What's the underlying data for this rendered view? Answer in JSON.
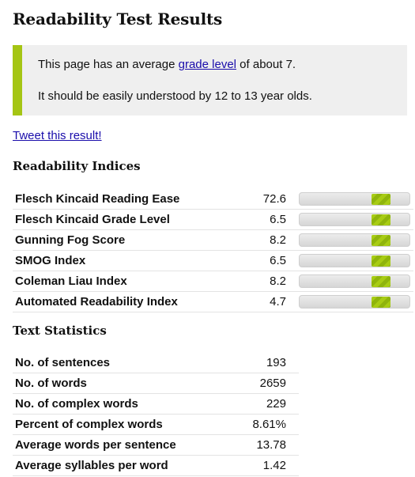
{
  "title": "Readability Test Results",
  "summary": {
    "line1_before": "This page has an average ",
    "line1_link": "grade level",
    "line1_after": " of about 7.",
    "line2": "It should be easily understood by 12 to 13 year olds."
  },
  "tweet_link": "Tweet this result!",
  "indices": {
    "heading": "Readability Indices",
    "rows": [
      {
        "name": "Flesch Kincaid Reading Ease",
        "value": "72.6",
        "bar_fraction": 0.73
      },
      {
        "name": "Flesch Kincaid Grade Level",
        "value": "6.5",
        "bar_fraction": 0.73
      },
      {
        "name": "Gunning Fog Score",
        "value": "8.2",
        "bar_fraction": 0.73
      },
      {
        "name": "SMOG Index",
        "value": "6.5",
        "bar_fraction": 0.73
      },
      {
        "name": "Coleman Liau Index",
        "value": "8.2",
        "bar_fraction": 0.73
      },
      {
        "name": "Automated Readability Index",
        "value": "4.7",
        "bar_fraction": 0.73
      }
    ]
  },
  "stats": {
    "heading": "Text Statistics",
    "rows": [
      {
        "name": "No. of sentences",
        "value": "193"
      },
      {
        "name": "No. of words",
        "value": "2659"
      },
      {
        "name": "No. of complex words",
        "value": "229"
      },
      {
        "name": "Percent of complex words",
        "value": "8.61%"
      },
      {
        "name": "Average words per sentence",
        "value": "13.78"
      },
      {
        "name": "Average syllables per word",
        "value": "1.42"
      }
    ]
  },
  "colors": {
    "accent": "#a5c514",
    "link": "#1a0dab",
    "callout_bg": "#efefef"
  }
}
